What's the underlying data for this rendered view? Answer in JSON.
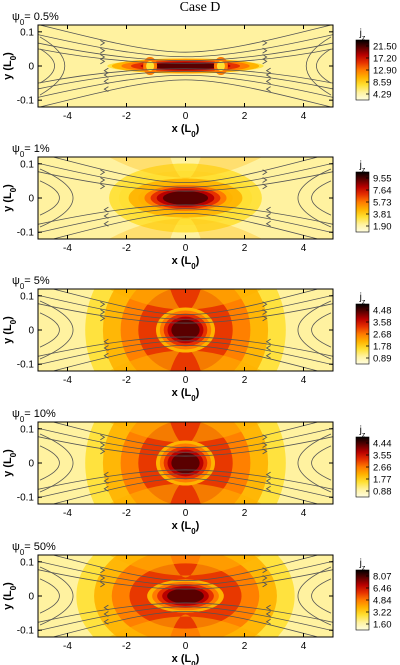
{
  "figure_title": "Case D",
  "colors": {
    "colormap": [
      "#fffde0",
      "#fff2a0",
      "#ffe033",
      "#ffb300",
      "#ff7a00",
      "#e63000",
      "#b80000",
      "#5a0000",
      "#000000"
    ],
    "field_line": "#555555"
  },
  "chart_data": [
    {
      "type": "heatmap",
      "panel_label": "ψ₀= 0.5%",
      "xlabel": "x (L₀)",
      "ylabel": "y (L₀)",
      "xlim": [
        -5,
        5
      ],
      "ylim": [
        -0.12,
        0.12
      ],
      "x_ticks": [
        "-4",
        "-2",
        "0",
        "2",
        "4"
      ],
      "y_ticks": [
        "0.1",
        "0",
        "-0.1"
      ],
      "colorbar_label": "jz",
      "colorbar_ticks": [
        "21.50",
        "17.20",
        "12.90",
        "8.59",
        "4.29"
      ],
      "current_sheet": {
        "center": [
          0,
          0
        ],
        "peak": 21.5,
        "half_length": 2.5,
        "half_width": 0.01,
        "magnetic_islands_at_x": [
          -1.2,
          1.2
        ]
      },
      "field_lines": "separatrix X-point topology, arrows pointing left above and right below"
    },
    {
      "type": "heatmap",
      "panel_label": "ψ₀= 1%",
      "xlabel": "x (L₀)",
      "ylabel": "y (L₀)",
      "xlim": [
        -5,
        5
      ],
      "ylim": [
        -0.12,
        0.12
      ],
      "x_ticks": [
        "-4",
        "-2",
        "0",
        "2",
        "4"
      ],
      "y_ticks": [
        "0.1",
        "0",
        "-0.1"
      ],
      "colorbar_label": "jz",
      "colorbar_ticks": [
        "9.55",
        "7.64",
        "5.73",
        "3.81",
        "1.90"
      ],
      "current_sheet": {
        "center": [
          0,
          0
        ],
        "peak": 9.55,
        "half_length": 1.6,
        "half_width": 0.02
      }
    },
    {
      "type": "heatmap",
      "panel_label": "ψ₀= 5%",
      "xlabel": "x (L₀)",
      "ylabel": "y (L₀)",
      "xlim": [
        -5,
        5
      ],
      "ylim": [
        -0.12,
        0.12
      ],
      "x_ticks": [
        "-4",
        "-2",
        "0",
        "2",
        "4"
      ],
      "y_ticks": [
        "0.1",
        "0",
        "-0.1"
      ],
      "colorbar_label": "jz",
      "colorbar_ticks": [
        "4.48",
        "3.58",
        "2.68",
        "1.78",
        "0.89"
      ],
      "current_sheet": {
        "center": [
          0,
          0
        ],
        "peak": 4.48,
        "half_length": 1.0,
        "half_width": 0.03
      }
    },
    {
      "type": "heatmap",
      "panel_label": "ψ₀= 10%",
      "xlabel": "x (L₀)",
      "ylabel": "y (L₀)",
      "xlim": [
        -5,
        5
      ],
      "ylim": [
        -0.12,
        0.12
      ],
      "x_ticks": [
        "-4",
        "-2",
        "0",
        "2",
        "4"
      ],
      "y_ticks": [
        "0.1",
        "0",
        "-0.1"
      ],
      "colorbar_label": "jz",
      "colorbar_ticks": [
        "4.44",
        "3.55",
        "2.66",
        "1.77",
        "0.88"
      ],
      "current_sheet": {
        "center": [
          0,
          0
        ],
        "peak": 4.44,
        "half_length": 1.0,
        "half_width": 0.03
      }
    },
    {
      "type": "heatmap",
      "panel_label": "ψ₀= 50%",
      "xlabel": "x (L₀)",
      "ylabel": "y (L₀)",
      "xlim": [
        -5,
        5
      ],
      "ylim": [
        -0.12,
        0.12
      ],
      "x_ticks": [
        "-4",
        "-2",
        "0",
        "2",
        "4"
      ],
      "y_ticks": [
        "0.1",
        "0",
        "-0.1"
      ],
      "colorbar_label": "jz",
      "colorbar_ticks": [
        "8.07",
        "6.46",
        "4.84",
        "3.22",
        "1.60"
      ],
      "current_sheet": {
        "center": [
          0,
          0
        ],
        "peak": 8.07,
        "half_length": 1.3,
        "half_width": 0.022
      }
    }
  ]
}
